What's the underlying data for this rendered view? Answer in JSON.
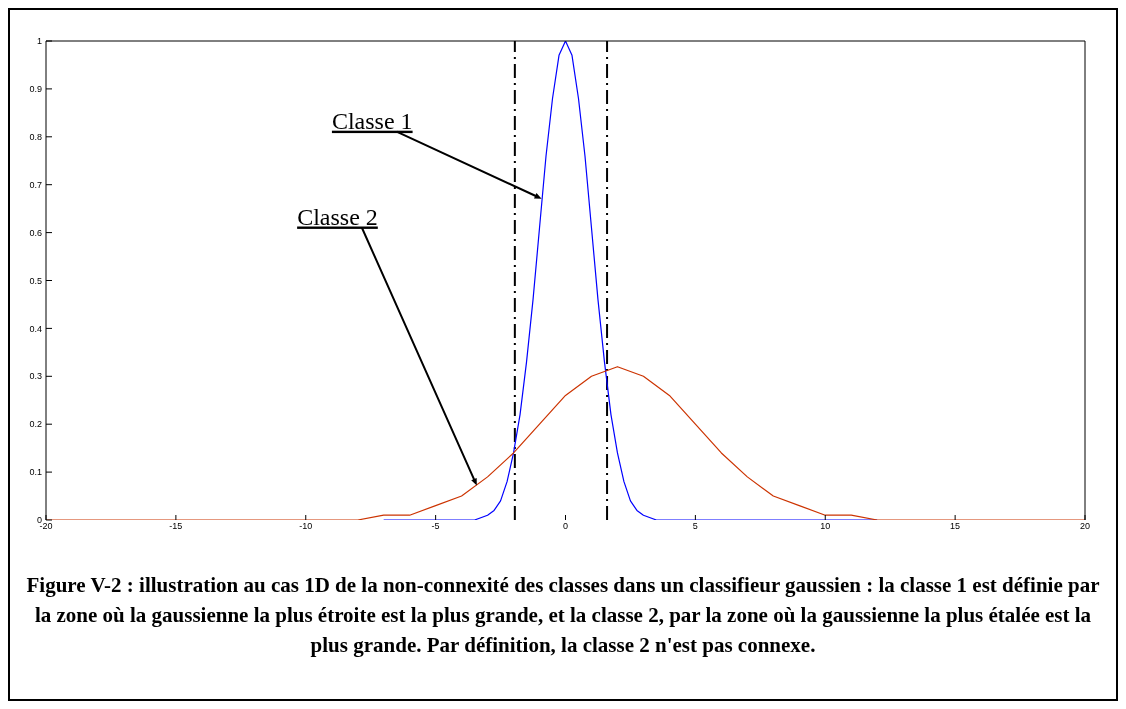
{
  "chart_data": {
    "type": "line",
    "xlim": [
      -20,
      20
    ],
    "xticks": [
      -20,
      -15,
      -10,
      -5,
      0,
      5,
      10,
      15,
      20
    ],
    "ylim": [
      0,
      1
    ],
    "yticks": [
      0,
      0.1,
      0.2,
      0.3,
      0.4,
      0.5,
      0.6,
      0.7,
      0.8,
      0.9,
      1
    ],
    "grid": false,
    "legend": false,
    "marker": "none",
    "line_style": "solid",
    "series": [
      {
        "color": "#0000ff",
        "x": [
          -7,
          -4,
          -3.5,
          -3,
          -2.75,
          -2.5,
          -2.25,
          -2,
          -1.75,
          -1.5,
          -1.25,
          -1,
          -0.75,
          -0.5,
          -0.25,
          0,
          0.25,
          0.5,
          0.75,
          1,
          1.25,
          1.5,
          1.75,
          2,
          2.25,
          2.5,
          2.75,
          3,
          3.5,
          4,
          12
        ],
        "values": [
          0,
          0,
          0,
          0.01,
          0.02,
          0.04,
          0.08,
          0.14,
          0.22,
          0.33,
          0.46,
          0.61,
          0.76,
          0.88,
          0.97,
          1,
          0.97,
          0.88,
          0.76,
          0.61,
          0.46,
          0.33,
          0.22,
          0.14,
          0.08,
          0.04,
          0.02,
          0.01,
          0,
          0,
          0
        ]
      },
      {
        "color": "#cc3300",
        "x": [
          -20,
          -10,
          -9,
          -8,
          -7,
          -6,
          -5,
          -4,
          -3,
          -2,
          -1,
          0,
          1,
          2,
          3,
          4,
          5,
          6,
          7,
          8,
          9,
          10,
          11,
          12,
          13,
          20
        ],
        "values": [
          0,
          0,
          0,
          0,
          0.01,
          0.01,
          0.03,
          0.05,
          0.09,
          0.14,
          0.2,
          0.26,
          0.3,
          0.32,
          0.3,
          0.26,
          0.2,
          0.14,
          0.09,
          0.05,
          0.03,
          0.01,
          0.01,
          0,
          0,
          0
        ]
      }
    ],
    "ref_lines": [
      {
        "axis": "x",
        "value": -1.95,
        "color": "#000000",
        "line_style": "dashdot"
      },
      {
        "axis": "x",
        "value": 1.6,
        "color": "#000000",
        "line_style": "dashdot"
      }
    ],
    "annotations": [
      "Classe 1",
      "Classe 2",
      "Figure V-2 : illustration au cas 1D de la non-connexité des classes dans un classifieur gaussien : la classe 1 est définie par la zone où la gaussienne la plus étroite est la plus grande, et la classe 2, par la zone où la gaussienne la plus étalée est la plus grande. Par définition, la classe 2 n'est pas connexe."
    ]
  }
}
